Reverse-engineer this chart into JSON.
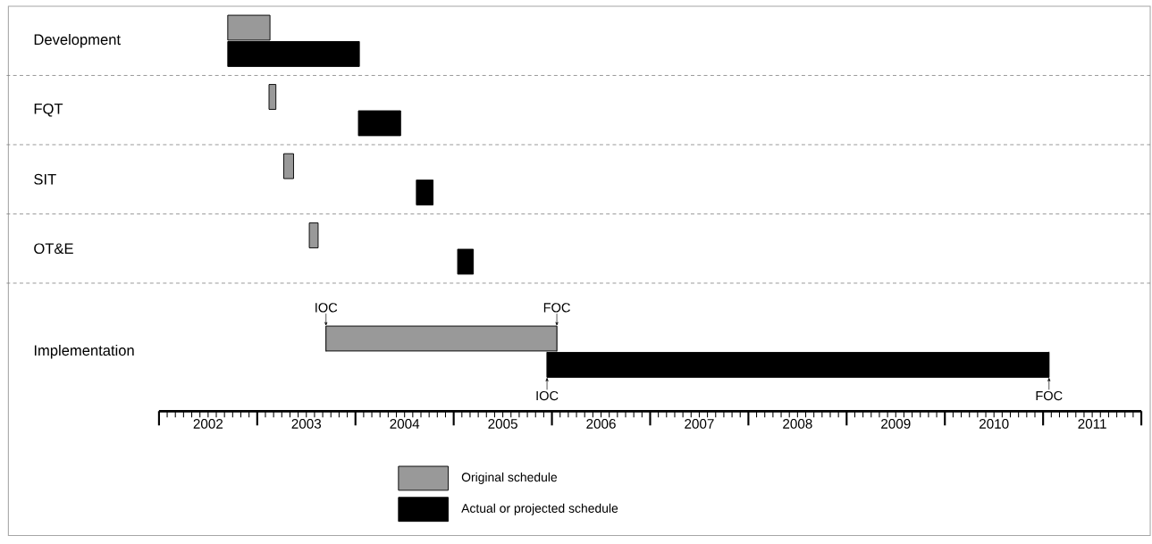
{
  "chart_data": {
    "type": "bar",
    "orientation": "horizontal",
    "categories": [
      "Development",
      "FQT",
      "SIT",
      "OT&E",
      "Implementation"
    ],
    "series": [
      {
        "name": "Original schedule",
        "color": "#999999",
        "base": [
          2002.7,
          2003.12,
          2003.27,
          2003.53,
          2003.7
        ],
        "values": [
          0.43,
          0.07,
          0.1,
          0.09,
          2.35
        ]
      },
      {
        "name": "Actual or projected schedule",
        "color": "#000000",
        "base": [
          2002.7,
          2004.03,
          2004.62,
          2005.04,
          2005.95
        ],
        "values": [
          1.34,
          0.43,
          0.17,
          0.16,
          5.11
        ]
      }
    ],
    "xlim": [
      2002,
      2012
    ],
    "xticks": [
      {
        "value": 2002.5,
        "label": "2002"
      },
      {
        "value": 2003.5,
        "label": "2003"
      },
      {
        "value": 2004.5,
        "label": "2004"
      },
      {
        "value": 2005.5,
        "label": "2005"
      },
      {
        "value": 2006.5,
        "label": "2006"
      },
      {
        "value": 2007.5,
        "label": "2007"
      },
      {
        "value": 2008.5,
        "label": "2008"
      },
      {
        "value": 2009.5,
        "label": "2009"
      },
      {
        "value": 2010.5,
        "label": "2010"
      },
      {
        "value": 2011.5,
        "label": "2011"
      }
    ],
    "annotations": [
      {
        "text": "IOC",
        "x": 2003.7,
        "y": "Implementation"
      },
      {
        "text": "FOC",
        "x": 2006.05,
        "y": "Implementation"
      },
      {
        "text": "IOC",
        "x": 2005.95,
        "y": "Implementation"
      },
      {
        "text": "FOC",
        "x": 2011.06,
        "y": "Implementation"
      }
    ],
    "grid": "y",
    "legend": "bottom"
  }
}
